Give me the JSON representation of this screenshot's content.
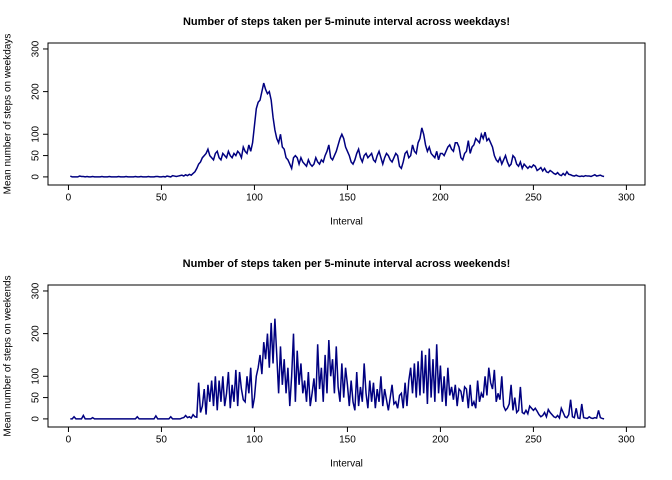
{
  "chart_data": [
    {
      "type": "line",
      "title": "Number of steps taken per 5-minute interval across weekdays!",
      "x_label": "Interval",
      "y_label": "Mean number of steps on weekdays",
      "x": [
        1,
        2,
        3,
        4,
        5,
        6,
        7,
        8,
        9,
        10,
        11,
        12,
        13,
        14,
        15,
        16,
        17,
        18,
        19,
        20,
        21,
        22,
        23,
        24,
        25,
        26,
        27,
        28,
        29,
        30,
        31,
        32,
        33,
        34,
        35,
        36,
        37,
        38,
        39,
        40,
        41,
        42,
        43,
        44,
        45,
        46,
        47,
        48,
        49,
        50,
        51,
        52,
        53,
        54,
        55,
        56,
        57,
        58,
        59,
        60,
        61,
        62,
        63,
        64,
        65,
        66,
        67,
        68,
        69,
        70,
        71,
        72,
        73,
        74,
        75,
        76,
        77,
        78,
        79,
        80,
        81,
        82,
        83,
        84,
        85,
        86,
        87,
        88,
        89,
        90,
        91,
        92,
        93,
        94,
        95,
        96,
        97,
        98,
        99,
        100,
        101,
        102,
        103,
        104,
        105,
        106,
        107,
        108,
        109,
        110,
        111,
        112,
        113,
        114,
        115,
        116,
        117,
        118,
        119,
        120,
        121,
        122,
        123,
        124,
        125,
        126,
        127,
        128,
        129,
        130,
        131,
        132,
        133,
        134,
        135,
        136,
        137,
        138,
        139,
        140,
        141,
        142,
        143,
        144,
        145,
        146,
        147,
        148,
        149,
        150,
        151,
        152,
        153,
        154,
        155,
        156,
        157,
        158,
        159,
        160,
        161,
        162,
        163,
        164,
        165,
        166,
        167,
        168,
        169,
        170,
        171,
        172,
        173,
        174,
        175,
        176,
        177,
        178,
        179,
        180,
        181,
        182,
        183,
        184,
        185,
        186,
        187,
        188,
        189,
        190,
        191,
        192,
        193,
        194,
        195,
        196,
        197,
        198,
        199,
        200,
        201,
        202,
        203,
        204,
        205,
        206,
        207,
        208,
        209,
        210,
        211,
        212,
        213,
        214,
        215,
        216,
        217,
        218,
        219,
        220,
        221,
        222,
        223,
        224,
        225,
        226,
        227,
        228,
        229,
        230,
        231,
        232,
        233,
        234,
        235,
        236,
        237,
        238,
        239,
        240,
        241,
        242,
        243,
        244,
        245,
        246,
        247,
        248,
        249,
        250,
        251,
        252,
        253,
        254,
        255,
        256,
        257,
        258,
        259,
        260,
        261,
        262,
        263,
        264,
        265,
        266,
        267,
        268,
        269,
        270,
        271,
        272,
        273,
        274,
        275,
        276,
        277,
        278,
        279,
        280,
        281,
        282,
        283,
        284,
        285,
        286,
        287,
        288
      ],
      "series": [
        {
          "color": "#000080",
          "values": [
            2,
            0,
            0,
            0,
            0,
            2,
            1,
            1,
            0,
            1,
            0,
            0,
            1,
            0,
            0,
            0,
            0,
            1,
            0,
            0,
            0,
            1,
            0,
            0,
            0,
            0,
            1,
            0,
            0,
            0,
            1,
            0,
            0,
            0,
            0,
            1,
            0,
            0,
            1,
            0,
            0,
            0,
            1,
            0,
            0,
            0,
            1,
            1,
            0,
            0,
            1,
            0,
            2,
            1,
            0,
            3,
            2,
            1,
            2,
            3,
            4,
            2,
            5,
            3,
            6,
            4,
            8,
            12,
            20,
            30,
            35,
            45,
            50,
            55,
            65,
            50,
            45,
            40,
            55,
            60,
            45,
            40,
            55,
            50,
            45,
            60,
            50,
            45,
            55,
            50,
            60,
            55,
            45,
            70,
            60,
            55,
            75,
            60,
            80,
            120,
            160,
            175,
            180,
            200,
            220,
            205,
            195,
            200,
            180,
            140,
            110,
            90,
            80,
            100,
            70,
            65,
            45,
            40,
            30,
            20,
            45,
            50,
            45,
            30,
            45,
            35,
            30,
            25,
            40,
            30,
            25,
            30,
            45,
            35,
            30,
            40,
            35,
            50,
            60,
            75,
            45,
            40,
            50,
            60,
            75,
            90,
            100,
            90,
            70,
            60,
            50,
            35,
            30,
            40,
            55,
            65,
            45,
            35,
            50,
            55,
            45,
            50,
            55,
            40,
            35,
            50,
            60,
            45,
            30,
            45,
            55,
            50,
            40,
            35,
            45,
            55,
            50,
            25,
            20,
            35,
            55,
            60,
            45,
            50,
            75,
            60,
            55,
            80,
            90,
            115,
            100,
            75,
            60,
            70,
            55,
            50,
            45,
            60,
            40,
            55,
            55,
            50,
            60,
            70,
            75,
            65,
            60,
            80,
            80,
            70,
            45,
            40,
            55,
            60,
            85,
            55,
            70,
            75,
            90,
            85,
            80,
            100,
            90,
            105,
            85,
            90,
            80,
            70,
            50,
            40,
            35,
            45,
            30,
            40,
            50,
            35,
            25,
            30,
            50,
            45,
            30,
            25,
            35,
            20,
            30,
            25,
            20,
            25,
            22,
            28,
            25,
            15,
            18,
            22,
            14,
            20,
            12,
            10,
            15,
            12,
            8,
            6,
            10,
            5,
            3,
            8,
            4,
            12,
            6,
            5,
            3,
            2,
            4,
            2,
            1,
            2,
            1,
            3,
            2,
            2,
            1,
            3,
            5,
            2,
            3,
            4,
            2,
            1
          ]
        }
      ],
      "xlim": [
        -11,
        310
      ],
      "xticks": [
        0,
        50,
        100,
        150,
        200,
        250,
        300
      ],
      "ylim": [
        -19,
        314
      ],
      "yticks": [
        0,
        50,
        100,
        200,
        300
      ]
    },
    {
      "type": "line",
      "title": "Number of steps taken per 5-minute interval across weekends!",
      "x_label": "Interval",
      "y_label": "Mean number of steps on weekends",
      "x": [
        1,
        2,
        3,
        4,
        5,
        6,
        7,
        8,
        9,
        10,
        11,
        12,
        13,
        14,
        15,
        16,
        17,
        18,
        19,
        20,
        21,
        22,
        23,
        24,
        25,
        26,
        27,
        28,
        29,
        30,
        31,
        32,
        33,
        34,
        35,
        36,
        37,
        38,
        39,
        40,
        41,
        42,
        43,
        44,
        45,
        46,
        47,
        48,
        49,
        50,
        51,
        52,
        53,
        54,
        55,
        56,
        57,
        58,
        59,
        60,
        61,
        62,
        63,
        64,
        65,
        66,
        67,
        68,
        69,
        70,
        71,
        72,
        73,
        74,
        75,
        76,
        77,
        78,
        79,
        80,
        81,
        82,
        83,
        84,
        85,
        86,
        87,
        88,
        89,
        90,
        91,
        92,
        93,
        94,
        95,
        96,
        97,
        98,
        99,
        100,
        101,
        102,
        103,
        104,
        105,
        106,
        107,
        108,
        109,
        110,
        111,
        112,
        113,
        114,
        115,
        116,
        117,
        118,
        119,
        120,
        121,
        122,
        123,
        124,
        125,
        126,
        127,
        128,
        129,
        130,
        131,
        132,
        133,
        134,
        135,
        136,
        137,
        138,
        139,
        140,
        141,
        142,
        143,
        144,
        145,
        146,
        147,
        148,
        149,
        150,
        151,
        152,
        153,
        154,
        155,
        156,
        157,
        158,
        159,
        160,
        161,
        162,
        163,
        164,
        165,
        166,
        167,
        168,
        169,
        170,
        171,
        172,
        173,
        174,
        175,
        176,
        177,
        178,
        179,
        180,
        181,
        182,
        183,
        184,
        185,
        186,
        187,
        188,
        189,
        190,
        191,
        192,
        193,
        194,
        195,
        196,
        197,
        198,
        199,
        200,
        201,
        202,
        203,
        204,
        205,
        206,
        207,
        208,
        209,
        210,
        211,
        212,
        213,
        214,
        215,
        216,
        217,
        218,
        219,
        220,
        221,
        222,
        223,
        224,
        225,
        226,
        227,
        228,
        229,
        230,
        231,
        232,
        233,
        234,
        235,
        236,
        237,
        238,
        239,
        240,
        241,
        242,
        243,
        244,
        245,
        246,
        247,
        248,
        249,
        250,
        251,
        252,
        253,
        254,
        255,
        256,
        257,
        258,
        259,
        260,
        261,
        262,
        263,
        264,
        265,
        266,
        267,
        268,
        269,
        270,
        271,
        272,
        273,
        274,
        275,
        276,
        277,
        278,
        279,
        280,
        281,
        282,
        283,
        284,
        285,
        286,
        287,
        288
      ],
      "series": [
        {
          "color": "#000080",
          "values": [
            0,
            0,
            5,
            0,
            0,
            0,
            0,
            8,
            0,
            0,
            0,
            0,
            3,
            0,
            0,
            0,
            0,
            0,
            0,
            0,
            0,
            0,
            0,
            0,
            0,
            0,
            0,
            0,
            0,
            0,
            0,
            0,
            0,
            0,
            0,
            0,
            5,
            0,
            0,
            0,
            0,
            0,
            0,
            0,
            0,
            0,
            7,
            0,
            0,
            0,
            0,
            0,
            0,
            0,
            5,
            0,
            0,
            0,
            0,
            0,
            2,
            3,
            8,
            3,
            5,
            2,
            10,
            5,
            4,
            85,
            15,
            30,
            70,
            10,
            80,
            40,
            90,
            30,
            100,
            20,
            90,
            40,
            100,
            30,
            60,
            110,
            25,
            80,
            40,
            115,
            30,
            110,
            70,
            45,
            40,
            100,
            60,
            120,
            25,
            50,
            100,
            120,
            150,
            105,
            180,
            140,
            200,
            120,
            225,
            130,
            235,
            150,
            60,
            170,
            80,
            140,
            60,
            120,
            30,
            100,
            200,
            40,
            160,
            80,
            130,
            60,
            90,
            40,
            110,
            30,
            60,
            95,
            40,
            175,
            70,
            120,
            40,
            150,
            60,
            185,
            100,
            140,
            60,
            170,
            75,
            40,
            130,
            50,
            120,
            80,
            30,
            90,
            40,
            20,
            110,
            30,
            75,
            40,
            130,
            60,
            25,
            90,
            40,
            85,
            25,
            70,
            40,
            100,
            30,
            70,
            45,
            20,
            50,
            80,
            35,
            40,
            25,
            55,
            60,
            25,
            85,
            30,
            90,
            120,
            60,
            130,
            50,
            135,
            55,
            160,
            60,
            150,
            35,
            165,
            50,
            140,
            40,
            175,
            60,
            125,
            40,
            100,
            30,
            120,
            55,
            75,
            45,
            80,
            30,
            70,
            65,
            40,
            75,
            70,
            25,
            80,
            30,
            40,
            25,
            90,
            40,
            60,
            50,
            100,
            55,
            120,
            85,
            70,
            115,
            40,
            60,
            45,
            100,
            30,
            20,
            25,
            35,
            80,
            20,
            50,
            15,
            20,
            75,
            15,
            12,
            20,
            12,
            30,
            25,
            20,
            25,
            18,
            10,
            5,
            8,
            15,
            5,
            22,
            15,
            10,
            5,
            3,
            8,
            2,
            25,
            15,
            5,
            3,
            10,
            45,
            5,
            3,
            25,
            2,
            1,
            35,
            3,
            2,
            1,
            5,
            2,
            1,
            3,
            2,
            20,
            3,
            1,
            0
          ]
        }
      ],
      "xlim": [
        -11,
        310
      ],
      "xticks": [
        0,
        50,
        100,
        150,
        200,
        250,
        300
      ],
      "ylim": [
        -19,
        314
      ],
      "yticks": [
        0,
        50,
        100,
        200,
        300
      ]
    }
  ]
}
